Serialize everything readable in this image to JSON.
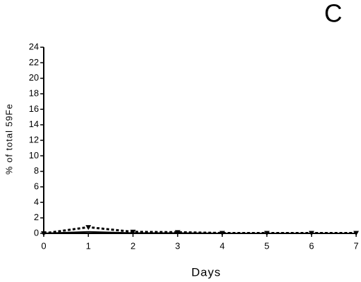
{
  "chart_data": {
    "type": "line",
    "panel_label": "C",
    "xlabel": "Days",
    "ylabel": "% of total 59Fe",
    "x": [
      0,
      1,
      2,
      3,
      4,
      5,
      6,
      7
    ],
    "series": [
      {
        "color": "#000000",
        "dashed": true,
        "marker": "triangle-down",
        "values": [
          0,
          0.8,
          0.2,
          0.15,
          0.05,
          0.05,
          0.05,
          0.05
        ]
      },
      {
        "color": "#000000",
        "dashed": false,
        "marker": "none",
        "values": [
          0,
          0.2,
          0.05,
          0.05,
          0,
          0,
          0,
          0
        ]
      }
    ],
    "xlim": [
      0,
      7
    ],
    "xticks": [
      0,
      1,
      2,
      3,
      4,
      5,
      6,
      7
    ],
    "ylim": [
      0,
      24
    ],
    "yticks": [
      0,
      2,
      4,
      6,
      8,
      10,
      12,
      14,
      16,
      18,
      20,
      22,
      24
    ],
    "grid": false
  }
}
